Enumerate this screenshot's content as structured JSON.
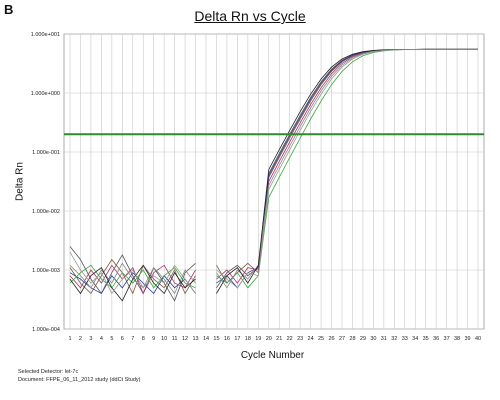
{
  "panel_letter": "B",
  "footer": {
    "detector": "Selected Detector: let-7c",
    "document": "Document: FFPE_06_11_2012 study (ddCt Study)"
  },
  "chart_data": {
    "type": "line",
    "title": "Delta Rn vs Cycle",
    "xlabel": "Cycle Number",
    "ylabel": "Delta Rn",
    "y_scale": "log",
    "xlim": [
      1,
      40
    ],
    "ylim": [
      0.0001,
      10
    ],
    "grid": true,
    "x_ticks": [
      "1",
      "2",
      "3",
      "4",
      "5",
      "6",
      "7",
      "8",
      "9",
      "10",
      "11",
      "12",
      "13",
      "14",
      "15",
      "16",
      "17",
      "18",
      "19",
      "20",
      "21",
      "22",
      "23",
      "24",
      "25",
      "26",
      "27",
      "28",
      "29",
      "30",
      "31",
      "32",
      "33",
      "34",
      "35",
      "36",
      "37",
      "38",
      "39",
      "40"
    ],
    "y_ticks": [
      {
        "value": 10,
        "label": "1.000e+001"
      },
      {
        "value": 1,
        "label": "1.000e+000"
      },
      {
        "value": 0.1,
        "label": "1.000e-001"
      },
      {
        "value": 0.01,
        "label": "1.000e-002"
      },
      {
        "value": 0.001,
        "label": "1.000e-003"
      },
      {
        "value": 0.0001,
        "label": "1.000e-004"
      }
    ],
    "threshold": {
      "value": 0.2,
      "color": "#2e8b2e"
    },
    "curve_model": {
      "plateau": 5.5,
      "slope": 0.78
    },
    "series": [
      {
        "color": "#555555",
        "midpoint": 26.2,
        "noise": [
          0.0025,
          0.0015,
          0.0007,
          0.0004,
          0.0009,
          0.0018,
          0.0008,
          0.0004,
          0.0011,
          0.0006,
          0.0003,
          0.0009,
          0.0013,
          null,
          0.0005,
          0.0009,
          0.0012,
          0.0008,
          0.0011
        ]
      },
      {
        "color": "#7a5c3a",
        "midpoint": 26.4,
        "noise": [
          0.0011,
          0.0006,
          0.0004,
          0.0008,
          0.0015,
          0.0009,
          0.0004,
          0.0012,
          0.0007,
          0.0005,
          0.001,
          0.0004,
          0.0008,
          null,
          0.0012,
          0.0006,
          0.0009,
          0.0013,
          0.0009
        ]
      },
      {
        "color": "#b0306a",
        "midpoint": 26.6,
        "noise": [
          0.0008,
          0.0005,
          0.001,
          0.0006,
          0.0012,
          0.0007,
          0.0011,
          0.0004,
          0.0009,
          0.0012,
          0.0006,
          0.0005,
          0.001,
          null,
          0.0007,
          0.001,
          0.0006,
          0.0011,
          0.001
        ]
      },
      {
        "color": "#2a3e9a",
        "midpoint": 26.3,
        "noise": [
          0.0009,
          0.0007,
          0.0005,
          0.0004,
          0.0008,
          0.0005,
          0.0009,
          0.0006,
          0.0004,
          0.0008,
          0.0005,
          0.0007,
          0.0004,
          null,
          0.0006,
          0.0008,
          0.0005,
          0.0009,
          0.0011
        ]
      },
      {
        "color": "#8a8a8a",
        "midpoint": 26.8,
        "noise": [
          0.0012,
          0.0008,
          0.0005,
          0.001,
          0.0006,
          0.0013,
          0.0007,
          0.0005,
          0.0011,
          0.0007,
          0.0004,
          0.001,
          0.0006,
          null,
          0.0009,
          0.0005,
          0.001,
          0.0007,
          0.0012
        ]
      },
      {
        "color": "#3aa83a",
        "midpoint": 27.4,
        "noise": [
          0.0006,
          0.0009,
          0.0012,
          0.0007,
          0.0005,
          0.0009,
          0.0006,
          0.001,
          0.0005,
          0.0008,
          0.0011,
          0.0006,
          0.0005,
          null,
          0.0008,
          0.0006,
          0.0009,
          0.0005,
          0.0008
        ]
      },
      {
        "color": "#222222",
        "midpoint": 26.0,
        "noise": [
          0.0007,
          0.0004,
          0.0008,
          0.0011,
          0.0005,
          0.0003,
          0.0007,
          0.0012,
          0.0006,
          0.0004,
          0.0009,
          0.0005,
          0.0007,
          null,
          0.0004,
          0.0008,
          0.0011,
          0.0006,
          0.0012
        ]
      },
      {
        "color": "#9a9a9a",
        "midpoint": 27.0,
        "noise": [
          0.002,
          0.001,
          0.0006,
          0.0009,
          0.0004,
          0.0007,
          0.001,
          0.0005,
          0.0008,
          0.0006,
          0.0012,
          0.0007,
          0.0004,
          null,
          0.001,
          0.0007,
          0.0005,
          0.0009,
          0.0008
        ]
      }
    ]
  }
}
